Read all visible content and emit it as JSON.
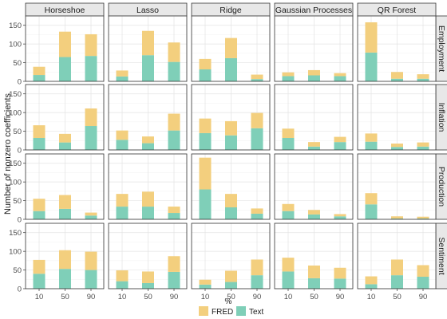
{
  "chart_data": {
    "type": "bar",
    "stacked": true,
    "grid": true,
    "legend_position": "bottom",
    "xlabel": "%",
    "ylabel": "Number of nonzero coefficients",
    "categories": [
      "10",
      "50",
      "90"
    ],
    "ylim": [
      0,
      175
    ],
    "yticks": [
      "0",
      "50",
      "100",
      "150"
    ],
    "columns": [
      "Horseshoe",
      "Lasso",
      "Ridge",
      "Gaussian Processes",
      "QR Forest"
    ],
    "rows": [
      "Employment",
      "Inflation",
      "Production",
      "Sentiment"
    ],
    "legend": [
      "FRED",
      "Text"
    ],
    "colors": {
      "FRED": "#f3cf7e",
      "Text": "#7fcfb8"
    },
    "panels": [
      {
        "column": "Horseshoe",
        "row": "Employment",
        "text": [
          17,
          65,
          68
        ],
        "fred": [
          22,
          68,
          58
        ]
      },
      {
        "column": "Lasso",
        "row": "Employment",
        "text": [
          13,
          70,
          52
        ],
        "fred": [
          16,
          65,
          52
        ]
      },
      {
        "column": "Ridge",
        "row": "Employment",
        "text": [
          32,
          62,
          6
        ],
        "fred": [
          28,
          54,
          12
        ]
      },
      {
        "column": "Gaussian Processes",
        "row": "Employment",
        "text": [
          14,
          16,
          14
        ],
        "fred": [
          10,
          14,
          8
        ]
      },
      {
        "column": "QR Forest",
        "row": "Employment",
        "text": [
          77,
          7,
          7
        ],
        "fred": [
          81,
          18,
          12
        ]
      },
      {
        "column": "Horseshoe",
        "row": "Inflation",
        "text": [
          32,
          20,
          64
        ],
        "fred": [
          34,
          23,
          47
        ]
      },
      {
        "column": "Lasso",
        "row": "Inflation",
        "text": [
          27,
          18,
          52
        ],
        "fred": [
          25,
          18,
          45
        ]
      },
      {
        "column": "Ridge",
        "row": "Inflation",
        "text": [
          45,
          39,
          58
        ],
        "fred": [
          39,
          38,
          41
        ]
      },
      {
        "column": "Gaussian Processes",
        "row": "Inflation",
        "text": [
          32,
          9,
          21
        ],
        "fred": [
          25,
          12,
          14
        ]
      },
      {
        "column": "QR Forest",
        "row": "Inflation",
        "text": [
          22,
          8,
          9
        ],
        "fred": [
          22,
          9,
          11
        ]
      },
      {
        "column": "Horseshoe",
        "row": "Production",
        "text": [
          22,
          28,
          10
        ],
        "fred": [
          33,
          37,
          8
        ]
      },
      {
        "column": "Lasso",
        "row": "Production",
        "text": [
          34,
          34,
          17
        ],
        "fred": [
          34,
          40,
          17
        ]
      },
      {
        "column": "Ridge",
        "row": "Production",
        "text": [
          80,
          32,
          15
        ],
        "fred": [
          85,
          36,
          14
        ]
      },
      {
        "column": "Gaussian Processes",
        "row": "Production",
        "text": [
          22,
          13,
          8
        ],
        "fred": [
          19,
          12,
          6
        ]
      },
      {
        "column": "QR Forest",
        "row": "Production",
        "text": [
          40,
          2,
          2
        ],
        "fred": [
          30,
          6,
          5
        ]
      },
      {
        "column": "Horseshoe",
        "row": "Sentiment",
        "text": [
          40,
          53,
          50
        ],
        "fred": [
          37,
          50,
          49
        ]
      },
      {
        "column": "Lasso",
        "row": "Sentiment",
        "text": [
          20,
          15,
          45
        ],
        "fred": [
          29,
          31,
          42
        ]
      },
      {
        "column": "Ridge",
        "row": "Sentiment",
        "text": [
          11,
          18,
          36
        ],
        "fred": [
          13,
          30,
          42
        ]
      },
      {
        "column": "Gaussian Processes",
        "row": "Sentiment",
        "text": [
          46,
          28,
          27
        ],
        "fred": [
          37,
          34,
          29
        ]
      },
      {
        "column": "QR Forest",
        "row": "Sentiment",
        "text": [
          12,
          36,
          32
        ],
        "fred": [
          21,
          42,
          31
        ]
      }
    ]
  }
}
